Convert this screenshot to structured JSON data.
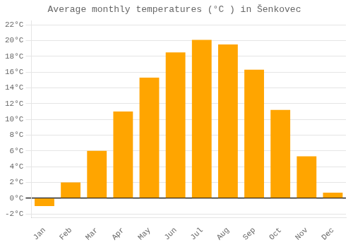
{
  "chart_data": {
    "type": "bar",
    "title": "Average monthly temperatures (°C ) in Šenkovec",
    "categories": [
      "Jan",
      "Feb",
      "Mar",
      "Apr",
      "May",
      "Jun",
      "Jul",
      "Aug",
      "Sep",
      "Oct",
      "Nov",
      "Dec"
    ],
    "values": [
      -1.0,
      2.0,
      6.0,
      11.0,
      15.3,
      18.5,
      20.1,
      19.5,
      16.3,
      11.2,
      5.3,
      0.7
    ],
    "color": "#FFA500",
    "ylim": [
      -2.5,
      22.5
    ],
    "yticks": [
      {
        "value": -2,
        "label": "-2°C"
      },
      {
        "value": 0,
        "label": "0°C"
      },
      {
        "value": 2,
        "label": "2°C"
      },
      {
        "value": 4,
        "label": "4°C"
      },
      {
        "value": 6,
        "label": "6°C"
      },
      {
        "value": 8,
        "label": "8°C"
      },
      {
        "value": 10,
        "label": "10°C"
      },
      {
        "value": 12,
        "label": "12°C"
      },
      {
        "value": 14,
        "label": "14°C"
      },
      {
        "value": 16,
        "label": "16°C"
      },
      {
        "value": 18,
        "label": "18°C"
      },
      {
        "value": 20,
        "label": "20°C"
      },
      {
        "value": 22,
        "label": "22°C"
      }
    ],
    "grid": true
  }
}
